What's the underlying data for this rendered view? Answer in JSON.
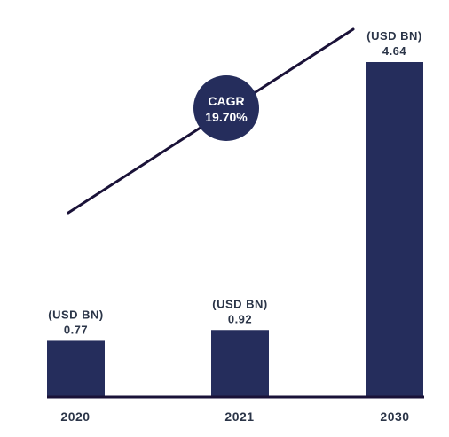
{
  "chart_data": {
    "type": "bar",
    "title": "",
    "xlabel": "",
    "ylabel": "",
    "categories": [
      "2020",
      "2021",
      "2030"
    ],
    "values": [
      0.77,
      0.92,
      4.64
    ],
    "unit_label": "(USD BN)",
    "value_labels": [
      "0.77",
      "0.92",
      "4.64"
    ],
    "ylim": [
      0,
      4.64
    ],
    "grid": false,
    "legend": "none",
    "trend_line": true,
    "annotation": {
      "line1": "CAGR",
      "line2": "19.70%"
    },
    "colors": {
      "bar": "#252d5c",
      "baseline": "#1a1238",
      "trend": "#1a1238",
      "label_text": "#2b3548",
      "badge_fill": "#252d5c",
      "badge_text": "#ffffff"
    }
  }
}
